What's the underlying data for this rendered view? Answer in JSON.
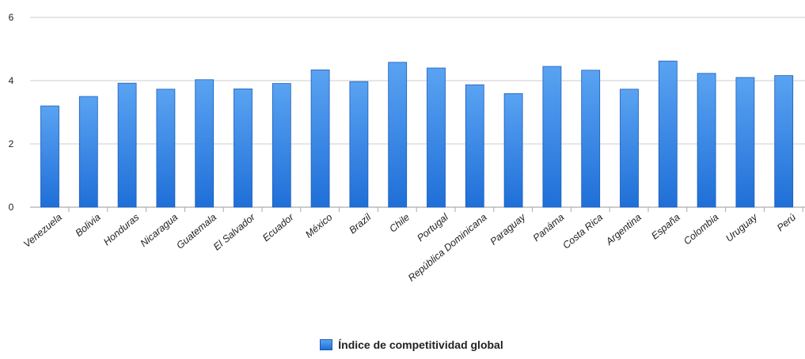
{
  "chart_data": {
    "type": "bar",
    "categories": [
      "Venezuela",
      "Bolivia",
      "Honduras",
      "Nicaragua",
      "Guatemala",
      "El Salvador",
      "Ecuador",
      "México",
      "Brazil",
      "Chile",
      "Portugal",
      "República Dominicana",
      "Paraguay",
      "Panáma",
      "Costa Rica",
      "Argentina",
      "España",
      "Colombia",
      "Uruguay",
      "Perú"
    ],
    "series": [
      {
        "name": "Índice de competitividad global",
        "values": [
          3.2,
          3.5,
          3.92,
          3.73,
          4.03,
          3.74,
          3.91,
          4.34,
          3.97,
          4.58,
          4.4,
          3.87,
          3.59,
          4.45,
          4.33,
          3.73,
          4.62,
          4.23,
          4.1,
          4.16
        ]
      }
    ],
    "yticks": [
      0,
      2,
      4,
      6
    ],
    "ylim": [
      0,
      6
    ],
    "grid": true,
    "legend": "bottom-center",
    "colors": {
      "bar_top": "#5aa3f2",
      "bar_bottom": "#1f6fd8",
      "bar_border": "#1a5cb8",
      "grid": "#cccccc"
    }
  }
}
